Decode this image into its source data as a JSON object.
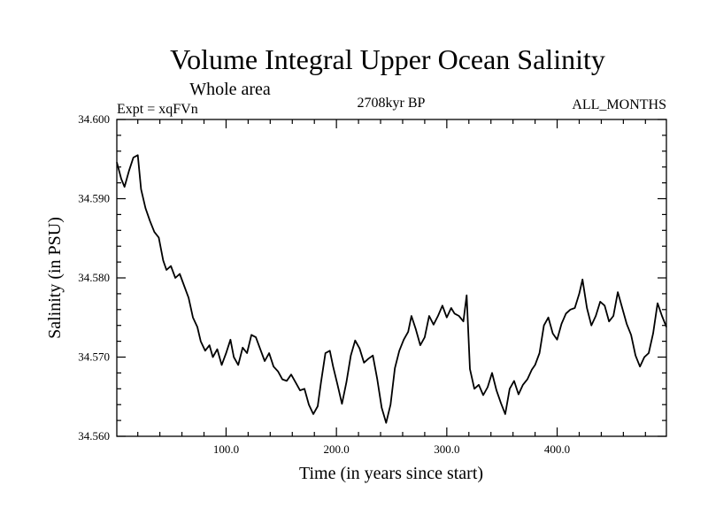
{
  "chart_data": {
    "type": "line",
    "title": "Volume Integral Upper Ocean Salinity",
    "subtitle": "Whole area",
    "experiment_label": "Expt = xqFVn",
    "period_label": "2708kyr BP",
    "months_label": "ALL_MONTHS",
    "xlabel": "Time (in years since start)",
    "ylabel": "Salinity (in PSU)",
    "xlim": [
      1,
      499
    ],
    "ylim": [
      34.56,
      34.6
    ],
    "xticks": [
      100,
      200,
      300,
      400
    ],
    "xtick_labels": [
      "100.0",
      "200.0",
      "300.0",
      "400.0"
    ],
    "yticks": [
      34.56,
      34.57,
      34.58,
      34.59,
      34.6
    ],
    "ytick_labels": [
      "34.560",
      "34.570",
      "34.580",
      "34.590",
      "34.600"
    ],
    "series": [
      {
        "name": "salinity",
        "color": "#000000",
        "points": [
          [
            1,
            34.5946
          ],
          [
            5,
            34.5925
          ],
          [
            8,
            34.5915
          ],
          [
            12,
            34.5935
          ],
          [
            16,
            34.5952
          ],
          [
            20,
            34.5955
          ],
          [
            23,
            34.5912
          ],
          [
            27,
            34.5888
          ],
          [
            31,
            34.5872
          ],
          [
            35,
            34.5858
          ],
          [
            39,
            34.5851
          ],
          [
            43,
            34.5822
          ],
          [
            46,
            34.581
          ],
          [
            50,
            34.5815
          ],
          [
            54,
            34.58
          ],
          [
            58,
            34.5805
          ],
          [
            62,
            34.579
          ],
          [
            66,
            34.5775
          ],
          [
            70,
            34.575
          ],
          [
            74,
            34.5738
          ],
          [
            77,
            34.572
          ],
          [
            81,
            34.5708
          ],
          [
            85,
            34.5715
          ],
          [
            88,
            34.57
          ],
          [
            92,
            34.571
          ],
          [
            96,
            34.569
          ],
          [
            100,
            34.5705
          ],
          [
            104,
            34.5722
          ],
          [
            107,
            34.57
          ],
          [
            111,
            34.569
          ],
          [
            115,
            34.5712
          ],
          [
            119,
            34.5705
          ],
          [
            123,
            34.5728
          ],
          [
            127,
            34.5725
          ],
          [
            131,
            34.571
          ],
          [
            135,
            34.5695
          ],
          [
            139,
            34.5705
          ],
          [
            143,
            34.5688
          ],
          [
            147,
            34.5682
          ],
          [
            151,
            34.5672
          ],
          [
            155,
            34.567
          ],
          [
            159,
            34.5678
          ],
          [
            163,
            34.5668
          ],
          [
            167,
            34.5658
          ],
          [
            171,
            34.566
          ],
          [
            175,
            34.564
          ],
          [
            179,
            34.5628
          ],
          [
            183,
            34.5638
          ],
          [
            186,
            34.5668
          ],
          [
            190,
            34.5705
          ],
          [
            194,
            34.5708
          ],
          [
            197,
            34.5688
          ],
          [
            201,
            34.5665
          ],
          [
            205,
            34.5641
          ],
          [
            209,
            34.5668
          ],
          [
            213,
            34.5702
          ],
          [
            217,
            34.5721
          ],
          [
            221,
            34.5711
          ],
          [
            225,
            34.5693
          ],
          [
            229,
            34.5698
          ],
          [
            233,
            34.5702
          ],
          [
            237,
            34.5672
          ],
          [
            241,
            34.5636
          ],
          [
            245,
            34.5617
          ],
          [
            249,
            34.564
          ],
          [
            253,
            34.5686
          ],
          [
            257,
            34.5708
          ],
          [
            261,
            34.5722
          ],
          [
            265,
            34.5732
          ],
          [
            268,
            34.5752
          ],
          [
            272,
            34.5735
          ],
          [
            276,
            34.5715
          ],
          [
            280,
            34.5725
          ],
          [
            284,
            34.5752
          ],
          [
            288,
            34.5741
          ],
          [
            292,
            34.5752
          ],
          [
            296,
            34.5765
          ],
          [
            300,
            34.575
          ],
          [
            304,
            34.5762
          ],
          [
            307,
            34.5755
          ],
          [
            311,
            34.5752
          ],
          [
            315,
            34.5745
          ],
          [
            318,
            34.5778
          ],
          [
            321,
            34.5685
          ],
          [
            325,
            34.566
          ],
          [
            329,
            34.5665
          ],
          [
            333,
            34.5652
          ],
          [
            337,
            34.5662
          ],
          [
            341,
            34.568
          ],
          [
            345,
            34.5658
          ],
          [
            349,
            34.5642
          ],
          [
            353,
            34.5628
          ],
          [
            357,
            34.566
          ],
          [
            361,
            34.567
          ],
          [
            365,
            34.5653
          ],
          [
            369,
            34.5665
          ],
          [
            373,
            34.5672
          ],
          [
            377,
            34.5684
          ],
          [
            380,
            34.569
          ],
          [
            384,
            34.5705
          ],
          [
            388,
            34.574
          ],
          [
            392,
            34.575
          ],
          [
            396,
            34.573
          ],
          [
            400,
            34.5722
          ],
          [
            404,
            34.5742
          ],
          [
            408,
            34.5755
          ],
          [
            412,
            34.576
          ],
          [
            416,
            34.5762
          ],
          [
            420,
            34.578
          ],
          [
            423,
            34.5798
          ],
          [
            427,
            34.5762
          ],
          [
            431,
            34.574
          ],
          [
            435,
            34.5752
          ],
          [
            439,
            34.577
          ],
          [
            443,
            34.5765
          ],
          [
            447,
            34.5745
          ],
          [
            451,
            34.5752
          ],
          [
            455,
            34.5782
          ],
          [
            459,
            34.5762
          ],
          [
            463,
            34.5742
          ],
          [
            467,
            34.5728
          ],
          [
            471,
            34.5702
          ],
          [
            475,
            34.5688
          ],
          [
            479,
            34.57
          ],
          [
            483,
            34.5705
          ],
          [
            487,
            34.573
          ],
          [
            491,
            34.5768
          ],
          [
            495,
            34.5752
          ],
          [
            499,
            34.5738
          ]
        ]
      }
    ]
  }
}
